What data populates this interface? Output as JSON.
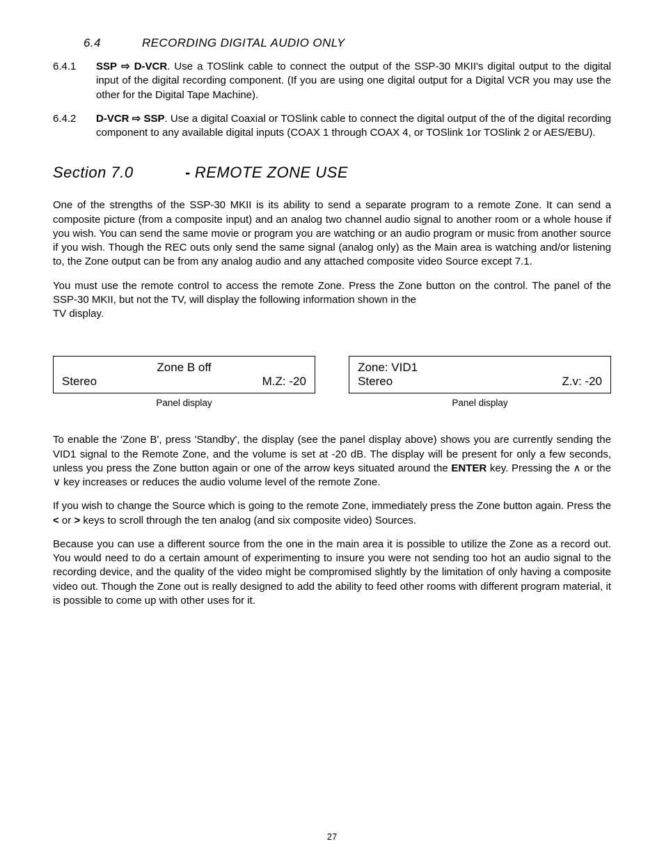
{
  "subheading": {
    "num": "6.4",
    "title": "RECORDING DIGITAL AUDIO ONLY"
  },
  "items": {
    "a": {
      "num": "6.4.1",
      "lead_a": "SSP",
      "lead_b": "D-VCR",
      "body": ". Use a TOSlink cable to connect the output of the SSP-30 MKII's digital output to the digital input of the digital recording component. (If you are using one digital output for a Digital VCR you may use the other for the Digital Tape Machine)."
    },
    "b": {
      "num": "6.4.2",
      "lead_a": "D-VCR",
      "lead_b": "SSP",
      "body": ". Use a digital Coaxial or TOSlink cable to connect the digital output of the of the digital recording component to any available digital inputs (COAX 1 through COAX 4, or TOSlink 1or TOSlink 2 or AES/EBU)."
    }
  },
  "arrow_glyph": "⇨",
  "section": {
    "left": "Section 7.0",
    "dash": "-",
    "title": "REMOTE ZONE USE"
  },
  "paras": {
    "p1": "One of the strengths of the SSP-30 MKII is its ability to send a separate program to a remote Zone. It can send a composite picture (from a composite input) and an analog two channel audio signal to another room or a whole house if you wish. You can send the same movie or program you are watching or an audio program or music from another source if you wish. Though the REC outs only send the same signal (analog only) as the Main area is watching and/or listening to, the Zone output can be from any analog audio and any attached composite video Source except 7.1.",
    "p2a": "You must use the remote control to access the remote Zone. Press the Zone button on the control. The panel of the SSP-30 MKII, but not the TV, will display the following information shown in the",
    "p2b": "TV display.",
    "p3_pre": "To enable the 'Zone B', press 'Standby', the display (see the panel display above) shows you are currently sending the VID1 signal to the Remote Zone, and the volume is set at -20 dB. The display will be present for only a few seconds, unless you press the Zone button again or one of the arrow keys situated around the ",
    "p3_enter": "ENTER",
    "p3_mid1": " key. Pressing the ",
    "p3_up": "∧",
    "p3_mid2": " or the ",
    "p3_down": "∨",
    "p3_post": " key increases or reduces the audio volume level of the remote Zone.",
    "p4_pre": "If you wish to change the Source which is going to the remote Zone, immediately press the Zone button again. Press the ",
    "p4_lt": "<",
    "p4_mid": " or ",
    "p4_gt": ">",
    "p4_post": " keys to scroll through the ten analog (and six composite video) Sources.",
    "p5": "Because you can use a different source from the one in the main area it is possible to utilize the Zone as a record out. You would need to do a certain amount of experimenting to insure you were not sending too hot an audio signal to the recording device, and the quality of the video might be compromised slightly by the limitation of only having a composite video out. Though the Zone out is really designed to add the ability to feed other rooms with different program material, it is possible to come up with other uses for it."
  },
  "panels": {
    "left": {
      "line1": "Zone  B  off",
      "line2_left": "Stereo",
      "line2_right": "M.Z: -20",
      "caption": "Panel display"
    },
    "right": {
      "line1": "Zone: VID1",
      "line2_left": "Stereo",
      "line2_right": "Z.v: -20",
      "caption": "Panel display"
    }
  },
  "pagenum": "27"
}
